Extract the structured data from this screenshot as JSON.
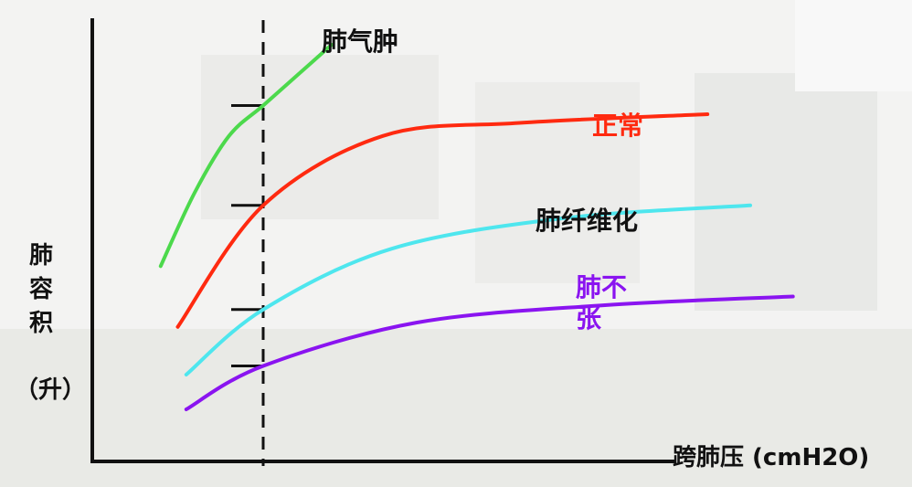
{
  "chart_data": {
    "type": "line",
    "title": "",
    "xlabel": "跨肺压 (cmH2O)",
    "ylabel_chars": [
      "肺",
      "容",
      "积"
    ],
    "yunit": "（升）",
    "xlim": [
      0,
      100
    ],
    "ylim": [
      0,
      100
    ],
    "reference_line": {
      "x": 20,
      "style": "dashed"
    },
    "series": [
      {
        "name": "肺气肿",
        "color": "#4cd94c",
        "x": [
          8,
          12,
          16,
          20,
          24,
          28
        ],
        "y": [
          45,
          62,
          75,
          82,
          89,
          96
        ]
      },
      {
        "name": "正常",
        "color": "#ff2a10",
        "x": [
          10,
          20,
          34,
          50,
          72
        ],
        "y": [
          31,
          59,
          75,
          78,
          80
        ]
      },
      {
        "name": "肺纤维化",
        "color": "#4ee6ee",
        "x": [
          11,
          20,
          35,
          55,
          77
        ],
        "y": [
          20,
          35,
          49,
          56,
          59
        ]
      },
      {
        "name": "肺不张",
        "color": "#8a14f0",
        "x": [
          11,
          20,
          38,
          60,
          82
        ],
        "y": [
          12,
          22,
          32,
          36,
          38
        ]
      }
    ],
    "ticks_at_reference": [
      82,
      59,
      35,
      22
    ],
    "label_colors": {
      "肺气肿": "#111111",
      "正常": "#ff2a10",
      "肺纤维化": "#111111",
      "肺不张": "#8a14f0"
    }
  }
}
